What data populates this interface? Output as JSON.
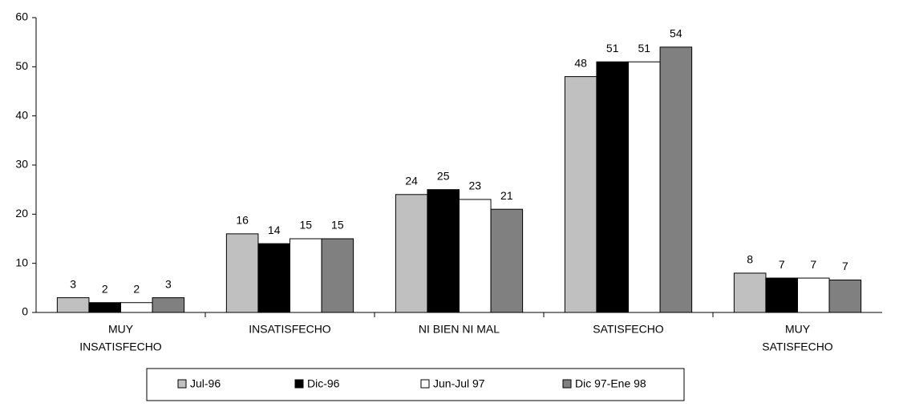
{
  "chart_data": {
    "type": "bar",
    "categories": [
      [
        "MUY",
        "INSATISFECHO"
      ],
      [
        "INSATISFECHO"
      ],
      [
        "NI BIEN NI MAL"
      ],
      [
        "SATISFECHO"
      ],
      [
        "MUY",
        "SATISFECHO"
      ]
    ],
    "series": [
      {
        "name": "Jul-96",
        "color": "#c0c0c0",
        "values": [
          3,
          16,
          24,
          48,
          8
        ]
      },
      {
        "name": "Dic-96",
        "color": "#000000",
        "values": [
          2,
          14,
          25,
          51,
          7
        ]
      },
      {
        "name": "Jun-Jul 97",
        "color": "#ffffff",
        "values": [
          2,
          15,
          23,
          51,
          7
        ]
      },
      {
        "name": "Dic 97-Ene 98",
        "color": "#808080",
        "values": [
          3,
          15,
          21,
          54,
          6.6
        ],
        "value_labels": [
          "3",
          "15",
          "21",
          "54",
          "7"
        ]
      }
    ],
    "ylim": [
      0,
      60
    ],
    "yticks": [
      0,
      10,
      20,
      30,
      40,
      50,
      60
    ],
    "grid": false,
    "legend": "bottom"
  }
}
